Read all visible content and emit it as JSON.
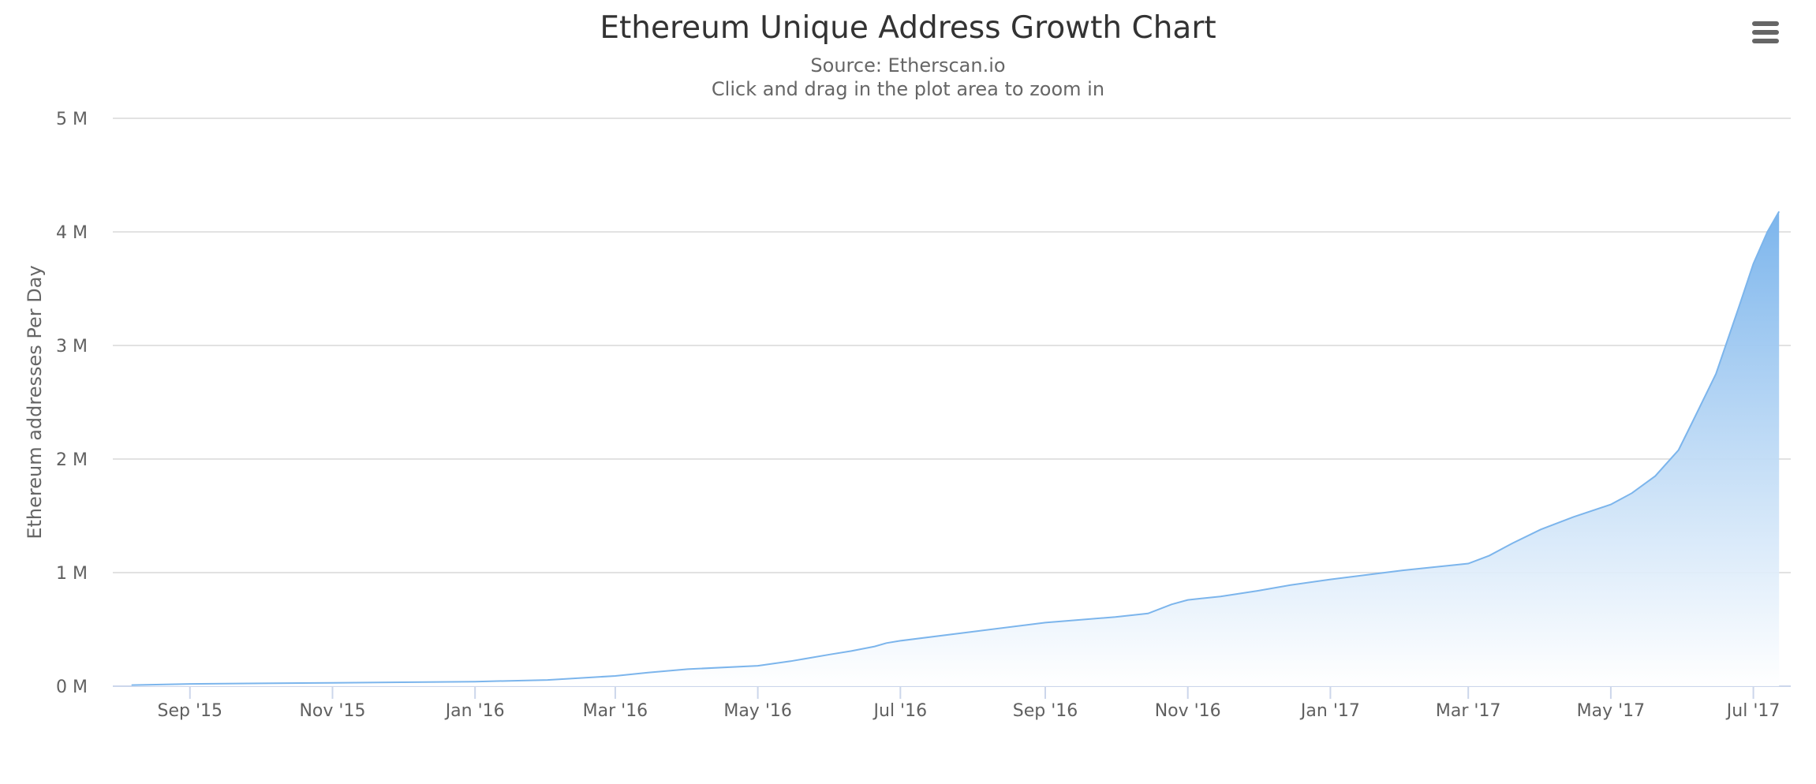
{
  "title": "Ethereum Unique Address Growth Chart",
  "subtitle": "Source: Etherscan.io",
  "subtitle2": "Click and drag in the plot area to zoom in",
  "menu_icon": "hamburger-menu-icon",
  "colors": {
    "line": "#7cb5ec",
    "area_top": "#7cb5ec",
    "area_bottom": "#ffffff",
    "grid": "#d8d8d8"
  },
  "chart_data": {
    "type": "area",
    "title": "Ethereum Unique Address Growth Chart",
    "subtitle": "Source: Etherscan.io",
    "ylabel": "Ethereum addresses Per Day",
    "xlabel": "",
    "ylim": [
      0,
      5000000
    ],
    "xlim": [
      "2015-07-30",
      "2017-07-17"
    ],
    "grid": true,
    "legend": "none",
    "y_tick_labels": [
      "0 M",
      "1 M",
      "2 M",
      "3 M",
      "4 M",
      "5 M"
    ],
    "y_tick_values": [
      0,
      1000000,
      2000000,
      3000000,
      4000000,
      5000000
    ],
    "x_tick_labels": [
      "Sep '15",
      "Nov '15",
      "Jan '16",
      "Mar '16",
      "May '16",
      "Jul '16",
      "Sep '16",
      "Nov '16",
      "Jan '17",
      "Mar '17",
      "May '17",
      "Jul '17"
    ],
    "x_tick_dates": [
      "2015-09-01",
      "2015-11-01",
      "2016-01-01",
      "2016-03-01",
      "2016-05-01",
      "2016-07-01",
      "2016-09-01",
      "2016-11-01",
      "2017-01-01",
      "2017-03-01",
      "2017-05-01",
      "2017-07-01"
    ],
    "series": [
      {
        "name": "Ethereum addresses Per Day",
        "x": [
          "2015-08-07",
          "2015-09-01",
          "2015-10-01",
          "2015-11-01",
          "2015-12-01",
          "2016-01-01",
          "2016-02-01",
          "2016-03-01",
          "2016-03-15",
          "2016-04-01",
          "2016-05-01",
          "2016-05-15",
          "2016-06-01",
          "2016-06-10",
          "2016-06-20",
          "2016-06-25",
          "2016-07-01",
          "2016-08-01",
          "2016-09-01",
          "2016-10-01",
          "2016-10-15",
          "2016-10-25",
          "2016-11-01",
          "2016-11-15",
          "2016-12-01",
          "2016-12-15",
          "2017-01-01",
          "2017-02-01",
          "2017-03-01",
          "2017-03-10",
          "2017-03-20",
          "2017-04-01",
          "2017-04-15",
          "2017-05-01",
          "2017-05-10",
          "2017-05-20",
          "2017-05-30",
          "2017-06-05",
          "2017-06-15",
          "2017-06-25",
          "2017-07-01",
          "2017-07-07",
          "2017-07-12"
        ],
        "values": [
          10000,
          20000,
          25000,
          30000,
          35000,
          40000,
          55000,
          90000,
          120000,
          150000,
          180000,
          220000,
          280000,
          310000,
          350000,
          380000,
          400000,
          480000,
          560000,
          610000,
          640000,
          720000,
          760000,
          790000,
          840000,
          890000,
          940000,
          1020000,
          1080000,
          1150000,
          1260000,
          1380000,
          1490000,
          1600000,
          1700000,
          1850000,
          2080000,
          2330000,
          2750000,
          3350000,
          3720000,
          4000000,
          4180000
        ]
      }
    ]
  }
}
